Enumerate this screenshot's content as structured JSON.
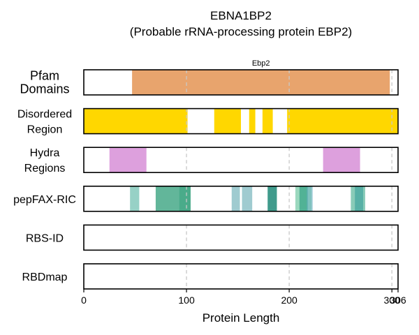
{
  "chart_data": {
    "type": "track",
    "title": [
      "EBNA1BP2",
      "(Probable rRNA-processing protein EBP2)"
    ],
    "xlabel": "Protein Length",
    "xlim": [
      0,
      306
    ],
    "xticks": [
      0,
      100,
      200,
      300,
      306
    ],
    "xtick_labels": [
      "0",
      "100",
      "200",
      "300",
      "306"
    ],
    "protein_length": 306,
    "gridlines": [
      100,
      200,
      300
    ],
    "tracks": [
      {
        "name": "Pfam Domains",
        "label_lines": [
          "Pfam",
          "Domains"
        ],
        "segments": [
          {
            "start": 47,
            "end": 298,
            "color": "#e8a46d",
            "opacity": 1,
            "label": "Ebp2"
          }
        ]
      },
      {
        "name": "Disordered Region",
        "label_lines": [
          "Disordered",
          "Region"
        ],
        "segments": [
          {
            "start": 0,
            "end": 101,
            "color": "#ffd700",
            "opacity": 1
          },
          {
            "start": 127,
            "end": 153,
            "color": "#ffd700",
            "opacity": 1
          },
          {
            "start": 161,
            "end": 167,
            "color": "#ffd700",
            "opacity": 1
          },
          {
            "start": 174,
            "end": 184,
            "color": "#ffd700",
            "opacity": 1
          },
          {
            "start": 198,
            "end": 306,
            "color": "#ffd700",
            "opacity": 1
          }
        ]
      },
      {
        "name": "Hydra Regions",
        "label_lines": [
          "Hydra",
          "Regions"
        ],
        "segments": [
          {
            "start": 25,
            "end": 61,
            "color": "#dda0dd",
            "opacity": 1
          },
          {
            "start": 233,
            "end": 269,
            "color": "#dda0dd",
            "opacity": 1
          }
        ]
      },
      {
        "name": "pepFAX-RIC",
        "label_lines": [
          "pepFAX-RIC"
        ],
        "segments": [
          {
            "start": 45,
            "end": 54,
            "color": "#5fb8a8",
            "opacity": 0.65
          },
          {
            "start": 70,
            "end": 104,
            "color": "#2e9e78",
            "opacity": 0.75
          },
          {
            "start": 93,
            "end": 104,
            "color": "#2e9e78",
            "opacity": 0.45
          },
          {
            "start": 144,
            "end": 152,
            "color": "#5fa8b0",
            "opacity": 0.6
          },
          {
            "start": 154,
            "end": 164,
            "color": "#5fa8b0",
            "opacity": 0.6
          },
          {
            "start": 179,
            "end": 188,
            "color": "#1f8a78",
            "opacity": 0.85
          },
          {
            "start": 206,
            "end": 222,
            "color": "#48b888",
            "opacity": 0.55
          },
          {
            "start": 210,
            "end": 218,
            "color": "#1f9a7a",
            "opacity": 0.6
          },
          {
            "start": 217,
            "end": 223,
            "color": "#5fa8c0",
            "opacity": 0.45
          },
          {
            "start": 260,
            "end": 274,
            "color": "#3aa888",
            "opacity": 0.6
          },
          {
            "start": 264,
            "end": 272,
            "color": "#2e9a98",
            "opacity": 0.55
          }
        ]
      },
      {
        "name": "RBS-ID",
        "label_lines": [
          "RBS-ID"
        ],
        "segments": []
      },
      {
        "name": "RBDmap",
        "label_lines": [
          "RBDmap"
        ],
        "segments": []
      }
    ],
    "colors": {
      "grid": "#c8c8c8",
      "frame": "#000000"
    }
  }
}
